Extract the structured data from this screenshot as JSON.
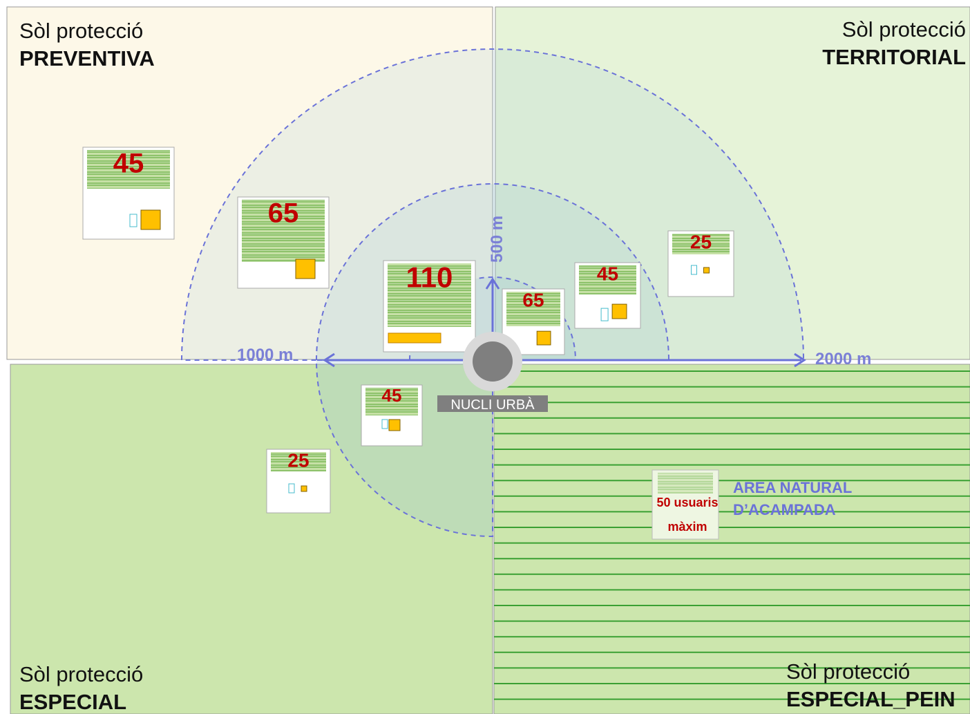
{
  "zones": [
    {
      "line1": "Sòl protecció",
      "line2": "PREVENTIVA"
    },
    {
      "line1": "Sòl protecció",
      "line2": "TERRITORIAL"
    },
    {
      "line1": "Sòl protecció",
      "line2": "ESPECIAL"
    },
    {
      "line1": "Sòl protecció",
      "line2": "ESPECIAL_PEIN"
    }
  ],
  "distances": [
    "500 m",
    "1000 m",
    "2000 m"
  ],
  "center": "NUCLI URBÀ",
  "campsites": [
    {
      "label": "45"
    },
    {
      "label": "65"
    },
    {
      "label": "110"
    },
    {
      "label": "65"
    },
    {
      "label": "45"
    },
    {
      "label": "25"
    },
    {
      "label": "45"
    },
    {
      "label": "25"
    }
  ],
  "natural_area": {
    "capacity_line1": "50 usuaris",
    "capacity_line2": "màxim",
    "name_line1": "AREA NATURAL",
    "name_line2": "D’ACAMPADA"
  }
}
